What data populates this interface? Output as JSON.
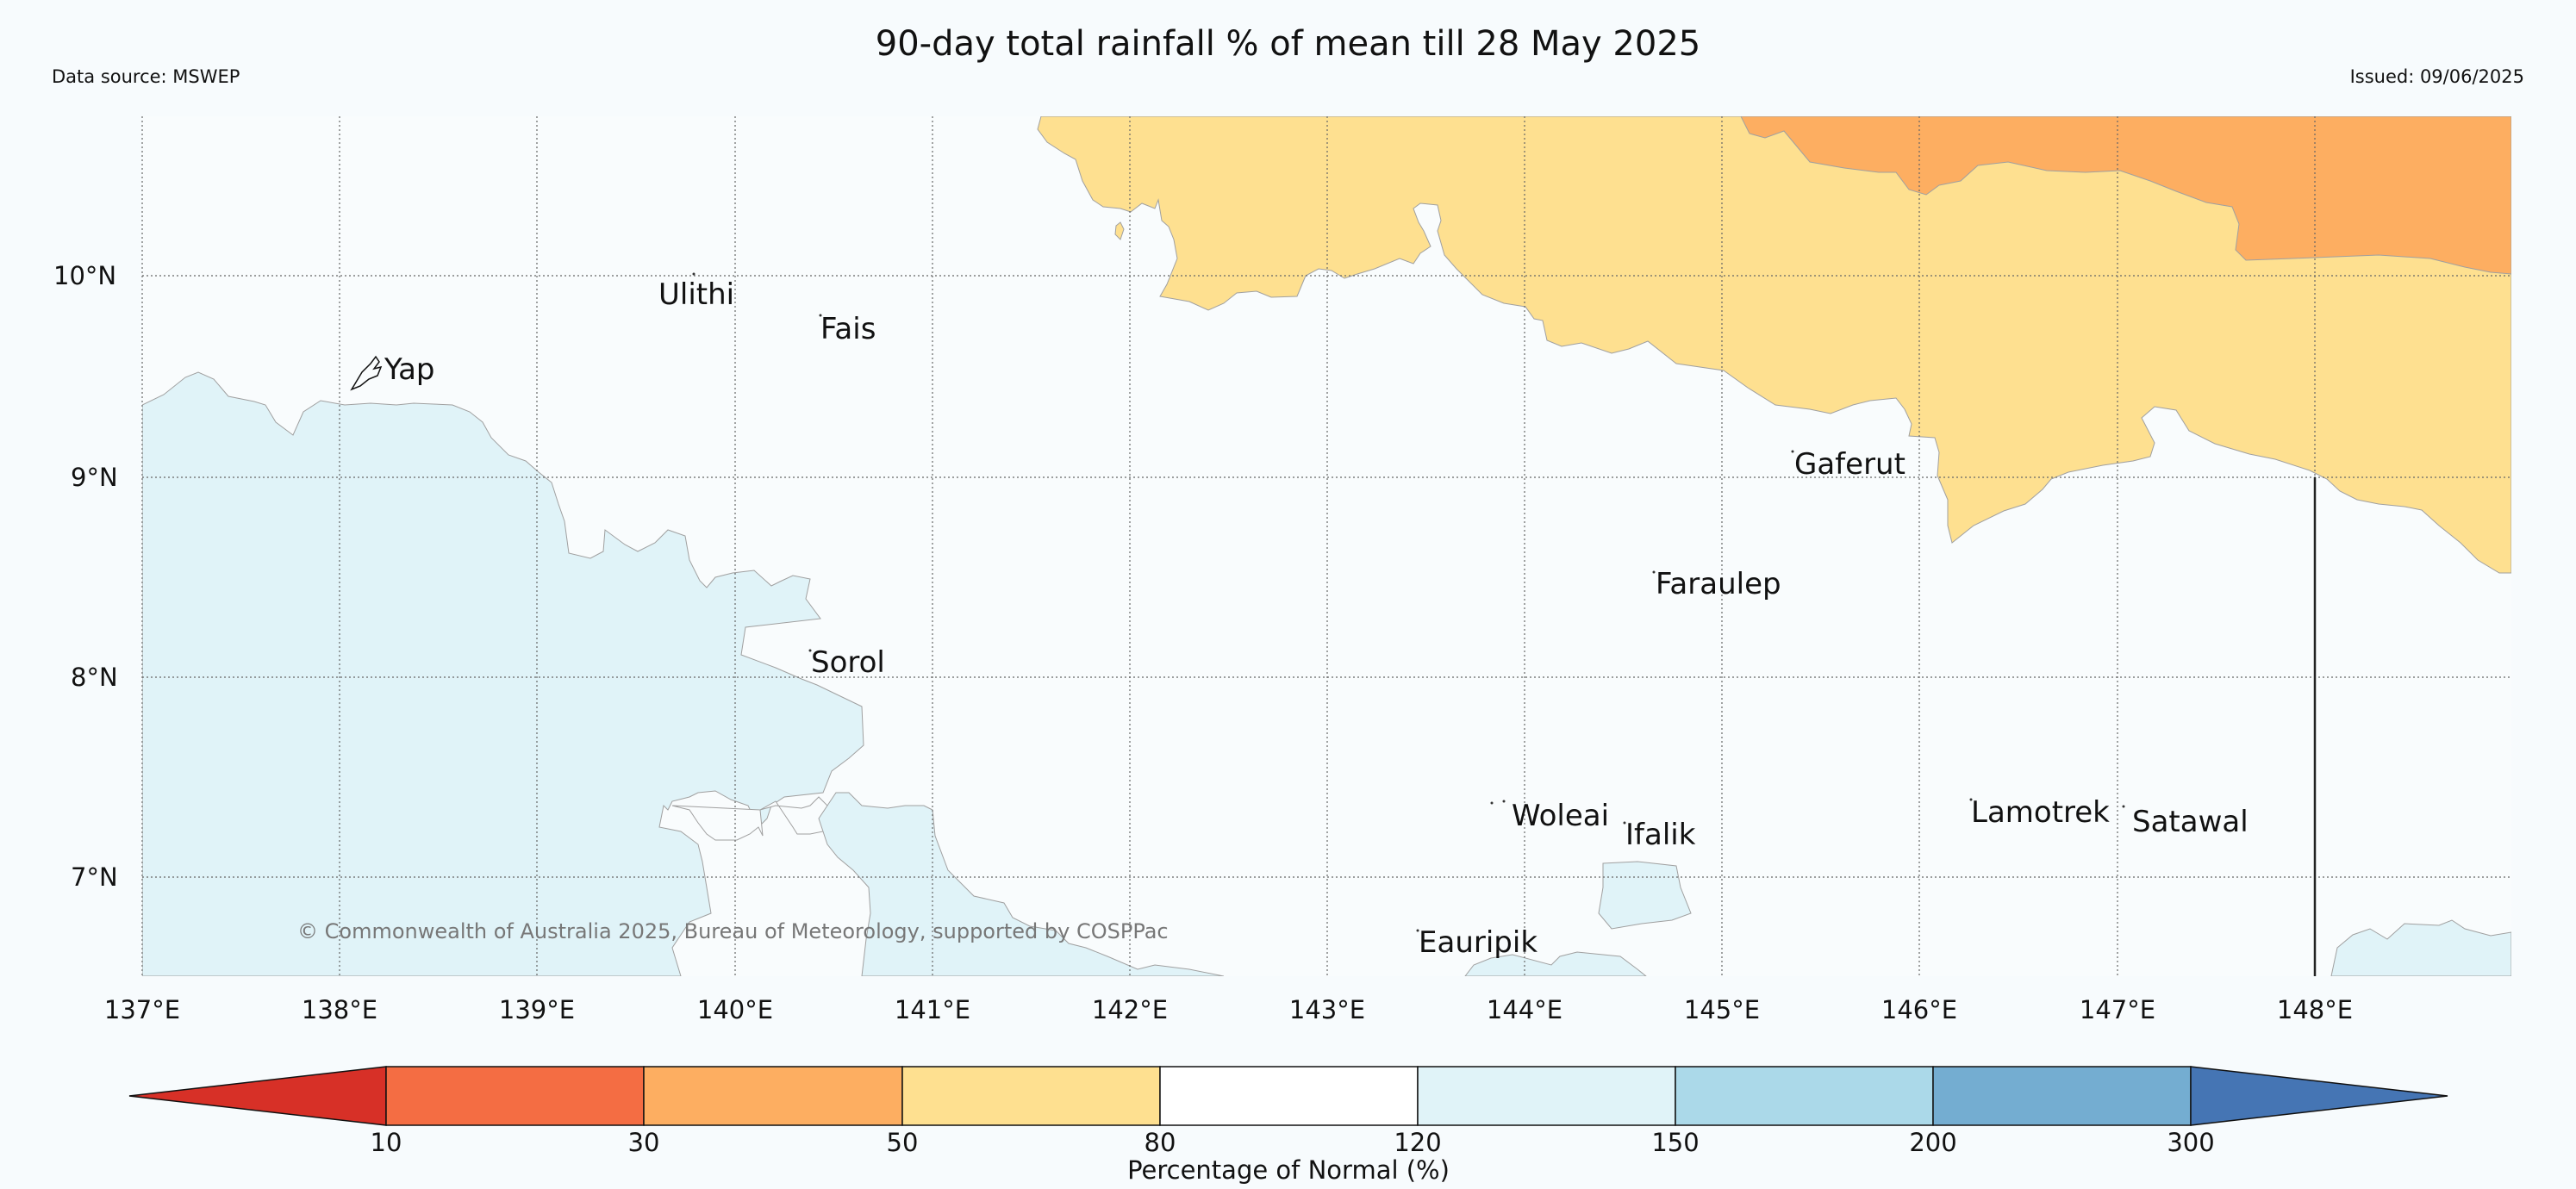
{
  "header": {
    "title": "90-day total rainfall % of mean till 28 May 2025",
    "data_source": "Data source: MSWEP",
    "issued": "Issued: 09/06/2025"
  },
  "map": {
    "lat_ticks": [
      "10°N",
      "9°N",
      "8°N",
      "7°N"
    ],
    "lon_ticks": [
      "137°E",
      "138°E",
      "139°E",
      "140°E",
      "141°E",
      "142°E",
      "143°E",
      "144°E",
      "145°E",
      "146°E",
      "147°E",
      "148°E"
    ],
    "places": [
      "Ulithi",
      "Fais",
      "Yap",
      "Gaferut",
      "Faraulep",
      "Sorol",
      "Woleai",
      "Ifalik",
      "Lamotrek",
      "Satawal",
      "Eauripik"
    ],
    "copyright": "© Commonwealth of Australia 2025, Bureau of Meteorology, supported by COSPPac",
    "colors": {
      "pct_10_30": "#f46d43",
      "pct_30_50": "#fdae61",
      "pct_50_80": "#fee090",
      "pct_80_120": "#ffffff",
      "pct_120_150": "#e0f3f8",
      "pct_150_200": "#abd9e9",
      "pct_200_300": "#74add1",
      "below_10": "#d73027",
      "above_300": "#4575b4"
    }
  },
  "colorbar": {
    "ticks": [
      "10",
      "30",
      "50",
      "80",
      "120",
      "150",
      "200",
      "300"
    ],
    "title": "Percentage of Normal (%)"
  }
}
